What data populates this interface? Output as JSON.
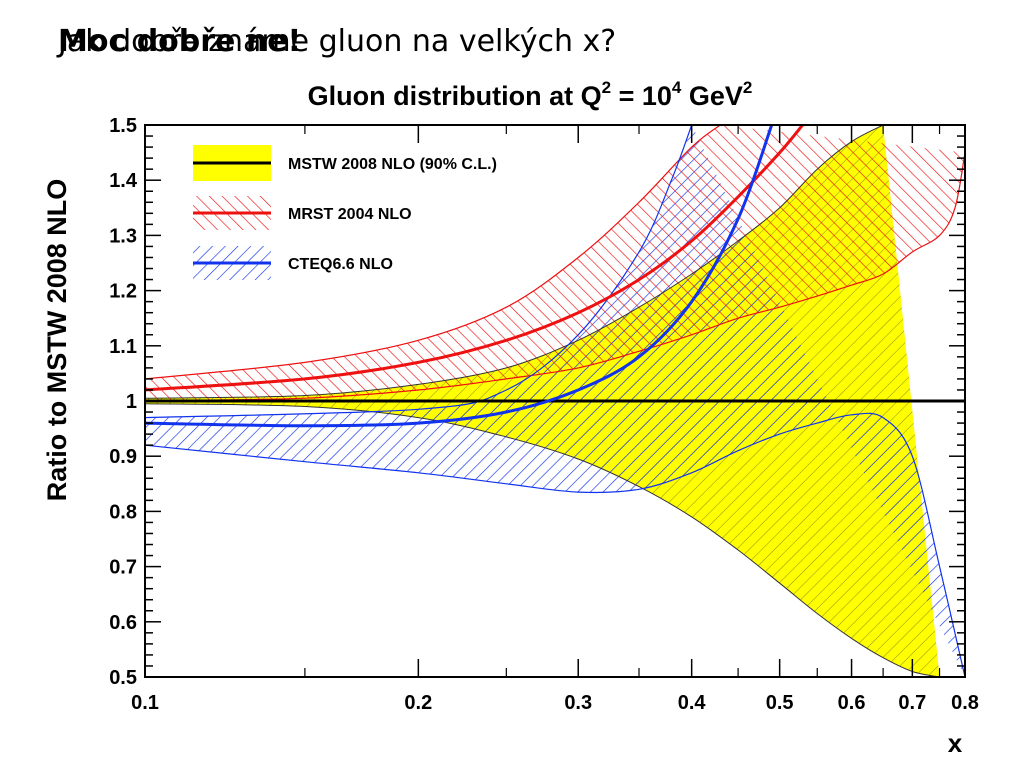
{
  "slide": {
    "title_a": "Jak dobře známe gluon na velkých x?",
    "title_b": "Moc dobře ne!"
  },
  "colors": {
    "mstw_band": "#ffff00",
    "mstw_line": "#000000",
    "mrst": "#ee1111",
    "cteq": "#1133ee"
  },
  "chart_data": {
    "type": "line",
    "title": "Gluon distribution at Q² = 10⁴ GeV²",
    "title_parts": [
      "Gluon distribution at Q",
      "2",
      " = 10",
      "4",
      " GeV",
      "2"
    ],
    "xlabel": "x",
    "ylabel": "Ratio to MSTW 2008 NLO",
    "x_scale": "log",
    "xlim": [
      0.1,
      0.8
    ],
    "ylim": [
      0.5,
      1.5
    ],
    "x_ticks": [
      0.1,
      0.2,
      0.3,
      0.4,
      0.5,
      0.6,
      0.7,
      0.8
    ],
    "x_tick_labels": [
      "0.1",
      "0.2",
      "0.3",
      "0.4",
      "0.5",
      "0.6",
      "0.7",
      "0.8"
    ],
    "y_ticks": [
      0.5,
      0.6,
      0.7,
      0.8,
      0.9,
      1.0,
      1.1,
      1.2,
      1.3,
      1.4,
      1.5
    ],
    "y_tick_labels": [
      "0.5",
      "0.6",
      "0.7",
      "0.8",
      "0.9",
      "1",
      "1.1",
      "1.2",
      "1.3",
      "1.4",
      "1.5"
    ],
    "legend_position": "top-left",
    "series": [
      {
        "name": "MSTW 2008 NLO (90% C.L.)",
        "style": "solid",
        "central": [
          [
            0.1,
            1.0
          ],
          [
            0.8,
            1.0
          ]
        ],
        "upper": [
          [
            0.1,
            1.005
          ],
          [
            0.15,
            1.01
          ],
          [
            0.2,
            1.03
          ],
          [
            0.25,
            1.06
          ],
          [
            0.3,
            1.11
          ],
          [
            0.35,
            1.17
          ],
          [
            0.4,
            1.23
          ],
          [
            0.45,
            1.29
          ],
          [
            0.5,
            1.35
          ],
          [
            0.55,
            1.42
          ],
          [
            0.6,
            1.47
          ],
          [
            0.65,
            1.5
          ]
        ],
        "lower": [
          [
            0.1,
            0.995
          ],
          [
            0.15,
            0.99
          ],
          [
            0.2,
            0.97
          ],
          [
            0.25,
            0.935
          ],
          [
            0.3,
            0.895
          ],
          [
            0.35,
            0.845
          ],
          [
            0.4,
            0.79
          ],
          [
            0.45,
            0.73
          ],
          [
            0.5,
            0.67
          ],
          [
            0.55,
            0.615
          ],
          [
            0.6,
            0.57
          ],
          [
            0.65,
            0.535
          ],
          [
            0.7,
            0.51
          ],
          [
            0.75,
            0.5
          ]
        ]
      },
      {
        "name": "MRST 2004 NLO",
        "style": "hatched",
        "central": [
          [
            0.1,
            1.02
          ],
          [
            0.15,
            1.04
          ],
          [
            0.2,
            1.07
          ],
          [
            0.25,
            1.11
          ],
          [
            0.3,
            1.16
          ],
          [
            0.35,
            1.22
          ],
          [
            0.4,
            1.29
          ],
          [
            0.45,
            1.37
          ],
          [
            0.5,
            1.45
          ],
          [
            0.53,
            1.5
          ]
        ],
        "upper": [
          [
            0.1,
            1.04
          ],
          [
            0.15,
            1.07
          ],
          [
            0.2,
            1.11
          ],
          [
            0.25,
            1.17
          ],
          [
            0.3,
            1.26
          ],
          [
            0.35,
            1.36
          ],
          [
            0.4,
            1.46
          ],
          [
            0.43,
            1.5
          ]
        ],
        "lower": [
          [
            0.1,
            1.0
          ],
          [
            0.15,
            1.005
          ],
          [
            0.2,
            1.02
          ],
          [
            0.25,
            1.04
          ],
          [
            0.3,
            1.06
          ],
          [
            0.35,
            1.09
          ],
          [
            0.4,
            1.12
          ],
          [
            0.45,
            1.15
          ],
          [
            0.5,
            1.17
          ],
          [
            0.55,
            1.19
          ],
          [
            0.6,
            1.21
          ],
          [
            0.65,
            1.23
          ],
          [
            0.7,
            1.27
          ],
          [
            0.75,
            1.3
          ],
          [
            0.78,
            1.35
          ],
          [
            0.8,
            1.45
          ]
        ]
      },
      {
        "name": "CTEQ6.6 NLO",
        "style": "hatched",
        "central": [
          [
            0.1,
            0.96
          ],
          [
            0.15,
            0.955
          ],
          [
            0.2,
            0.96
          ],
          [
            0.25,
            0.98
          ],
          [
            0.3,
            1.02
          ],
          [
            0.35,
            1.08
          ],
          [
            0.4,
            1.18
          ],
          [
            0.45,
            1.33
          ],
          [
            0.49,
            1.5
          ]
        ],
        "upper": [
          [
            0.1,
            0.97
          ],
          [
            0.2,
            0.985
          ],
          [
            0.25,
            1.02
          ],
          [
            0.3,
            1.12
          ],
          [
            0.35,
            1.27
          ],
          [
            0.38,
            1.4
          ],
          [
            0.4,
            1.5
          ]
        ],
        "lower": [
          [
            0.1,
            0.92
          ],
          [
            0.15,
            0.89
          ],
          [
            0.2,
            0.87
          ],
          [
            0.25,
            0.85
          ],
          [
            0.3,
            0.835
          ],
          [
            0.35,
            0.84
          ],
          [
            0.4,
            0.87
          ],
          [
            0.45,
            0.91
          ],
          [
            0.5,
            0.94
          ],
          [
            0.55,
            0.96
          ],
          [
            0.6,
            0.975
          ],
          [
            0.65,
            0.97
          ],
          [
            0.7,
            0.9
          ],
          [
            0.75,
            0.7
          ],
          [
            0.8,
            0.5
          ]
        ]
      }
    ]
  }
}
